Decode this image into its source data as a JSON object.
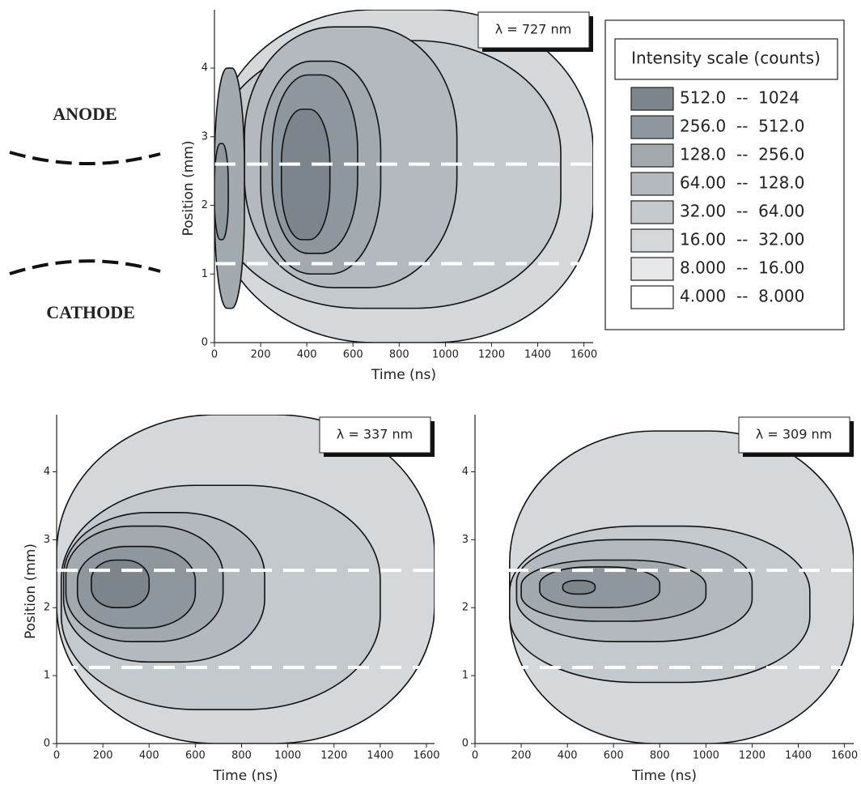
{
  "chart_data": [
    {
      "type": "contour",
      "annotation": "λ = 727 nm",
      "xlabel": "Time (ns)",
      "ylabel": "Position (mm)",
      "xlim": [
        0,
        1640
      ],
      "ylim": [
        0,
        4.85
      ],
      "xticks": [
        0,
        200,
        400,
        600,
        800,
        1000,
        1200,
        1400,
        1600
      ],
      "yticks": [
        0,
        1,
        2,
        3,
        4
      ],
      "reference_lines": [
        2.6,
        1.15
      ],
      "regions": [
        {
          "level": 5,
          "x": [
            0,
            1640
          ],
          "y": [
            0,
            4.85
          ]
        },
        {
          "level": 4,
          "x": [
            0,
            1500
          ],
          "y": [
            0.5,
            4.4
          ]
        },
        {
          "level": 3,
          "x": [
            130,
            1050
          ],
          "y": [
            0.8,
            4.6
          ]
        },
        {
          "level": 2,
          "x": [
            200,
            720
          ],
          "y": [
            1.0,
            4.1
          ]
        },
        {
          "level": 1,
          "x": [
            250,
            620
          ],
          "y": [
            1.3,
            3.9
          ]
        },
        {
          "level": 0,
          "x": [
            290,
            500
          ],
          "y": [
            1.5,
            3.4
          ]
        },
        {
          "level": 2,
          "x": [
            0,
            130
          ],
          "y": [
            0.5,
            4.0
          ]
        },
        {
          "level": 1,
          "x": [
            0,
            60
          ],
          "y": [
            1.5,
            2.9
          ]
        }
      ]
    },
    {
      "type": "contour",
      "annotation": "λ = 337 nm",
      "xlabel": "Time (ns)",
      "ylabel": "Position (mm)",
      "xlim": [
        0,
        1635
      ],
      "ylim": [
        0,
        4.84
      ],
      "xticks": [
        0,
        200,
        400,
        600,
        800,
        1000,
        1200,
        1400,
        1600
      ],
      "yticks": [
        0,
        1,
        2,
        3,
        4
      ],
      "reference_lines": [
        2.55,
        1.12
      ],
      "regions": [
        {
          "level": 5,
          "x": [
            0,
            1635
          ],
          "y": [
            0,
            4.84
          ]
        },
        {
          "level": 4,
          "x": [
            20,
            1400
          ],
          "y": [
            0.5,
            3.8
          ]
        },
        {
          "level": 3,
          "x": [
            30,
            900
          ],
          "y": [
            1.2,
            3.4
          ]
        },
        {
          "level": 2,
          "x": [
            40,
            720
          ],
          "y": [
            1.5,
            3.2
          ]
        },
        {
          "level": 1,
          "x": [
            90,
            600
          ],
          "y": [
            1.7,
            2.9
          ]
        },
        {
          "level": 0,
          "x": [
            150,
            400
          ],
          "y": [
            2.0,
            2.7
          ]
        }
      ]
    },
    {
      "type": "contour",
      "annotation": "λ = 309 nm",
      "xlabel": "Time (ns)",
      "xlim": [
        0,
        1640
      ],
      "ylim": [
        0,
        4.84
      ],
      "xticks": [
        0,
        200,
        400,
        600,
        800,
        1000,
        1200,
        1400,
        1600
      ],
      "yticks": [
        0,
        1,
        2,
        3,
        4
      ],
      "reference_lines": [
        2.55,
        1.12
      ],
      "regions": [
        {
          "level": 5,
          "x": [
            150,
            1640
          ],
          "y": [
            0,
            4.6
          ]
        },
        {
          "level": 4,
          "x": [
            150,
            1450
          ],
          "y": [
            0.9,
            3.2
          ]
        },
        {
          "level": 3,
          "x": [
            180,
            1200
          ],
          "y": [
            1.5,
            3.0
          ]
        },
        {
          "level": 2,
          "x": [
            200,
            1000
          ],
          "y": [
            1.8,
            2.7
          ]
        },
        {
          "level": 1,
          "x": [
            280,
            800
          ],
          "y": [
            2.0,
            2.6
          ]
        },
        {
          "level": 0,
          "x": [
            380,
            520
          ],
          "y": [
            2.2,
            2.4
          ]
        }
      ]
    }
  ],
  "legend": {
    "title": "Intensity scale (counts)",
    "levels": [
      {
        "label": "512.0  --  1024",
        "color": "#7c858c"
      },
      {
        "label": "256.0  --  512.0",
        "color": "#8f979e"
      },
      {
        "label": "128.0  --  256.0",
        "color": "#a2a9af"
      },
      {
        "label": "64.00  --  128.0",
        "color": "#b3b9be"
      },
      {
        "label": "32.00  --  64.00",
        "color": "#c4c9cd"
      },
      {
        "label": "16.00  --  32.00",
        "color": "#d5d8db"
      },
      {
        "label": "8.000  --  16.00",
        "color": "#e6e8e9"
      },
      {
        "label": "4.000  --  8.000",
        "color": "#ffffff"
      }
    ]
  },
  "electrodes": {
    "anode": "ANODE",
    "cathode": "CATHODE"
  }
}
